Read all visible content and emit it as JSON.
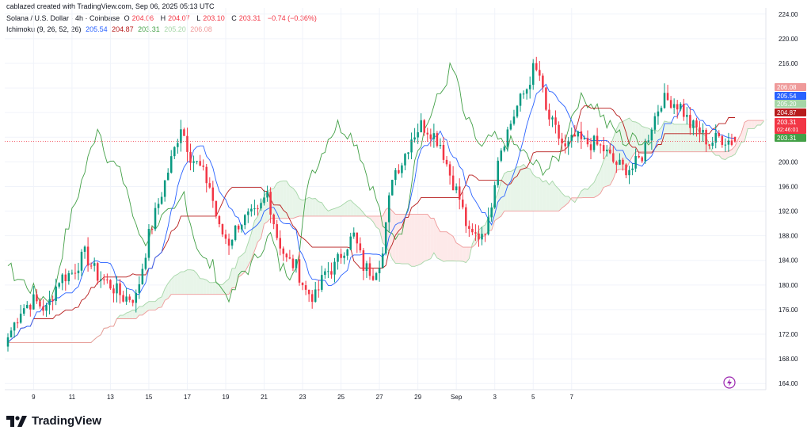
{
  "header": {
    "credit": "cablazed created with TradingView.com, Sep 06, 2025 05:13 UTC",
    "symbol": "Solana / U.S. Dollar · 4h · Coinbase",
    "ohlc": {
      "o_label": "O",
      "o": "204.06",
      "h_label": "H",
      "h": "204.07",
      "l_label": "L",
      "l": "203.10",
      "c_label": "C",
      "c": "203.31",
      "change": "−0.74 (−0.36%)"
    },
    "ichimoku": {
      "label": "Ichimoku (9, 26, 52, 26)",
      "conversion": "205.54",
      "base": "204.87",
      "lagging": "203.31",
      "lead_a": "205.20",
      "lead_b": "206.08"
    }
  },
  "footer": {
    "brand": "TradingView"
  },
  "colors": {
    "up": "#089981",
    "down": "#f23645",
    "conversion": "#2962ff",
    "base": "#b71c1c",
    "lagging": "#43a047",
    "lead_a": "#a5d6a7",
    "lead_b": "#ef9a9a",
    "cloud_bull": "#e8f5e9",
    "cloud_bear": "#fde9e9"
  },
  "chart_data": {
    "type": "candlestick",
    "indicator": "Ichimoku (9, 26, 52, 26)",
    "ylim": [
      163,
      225
    ],
    "y_ticks": [
      164,
      168,
      172,
      176,
      180,
      184,
      188,
      192,
      196,
      200,
      204,
      208,
      212,
      216,
      220,
      224
    ],
    "x_ticks": [
      "9",
      "11",
      "13",
      "15",
      "17",
      "19",
      "21",
      "23",
      "25",
      "27",
      "29",
      "Sep",
      "3",
      "5",
      "7"
    ],
    "price_labels": [
      {
        "value": 206.08,
        "text": "206.08",
        "color": "#ef9a9a"
      },
      {
        "value": 205.54,
        "text": "205.54",
        "color": "#2962ff"
      },
      {
        "value": 205.2,
        "text": "205.20",
        "color": "#a5d6a7"
      },
      {
        "value": 204.87,
        "text": "204.87",
        "color": "#b71c1c"
      },
      {
        "value": 203.31,
        "text": "203.31",
        "sub": "02:46:01",
        "color": "#f23645"
      },
      {
        "value": 203.31,
        "text": "203.31",
        "color": "#43a047"
      }
    ],
    "last_price": 203.31,
    "close_anchors": [
      [
        0,
        171.5
      ],
      [
        4,
        176.0
      ],
      [
        8,
        177.5
      ],
      [
        12,
        176.0
      ],
      [
        16,
        181.0
      ],
      [
        20,
        182.0
      ],
      [
        24,
        185.0
      ],
      [
        28,
        181.5
      ],
      [
        32,
        180.0
      ],
      [
        36,
        178.0
      ],
      [
        40,
        178.0
      ],
      [
        44,
        188.0
      ],
      [
        48,
        195.0
      ],
      [
        52,
        202.0
      ],
      [
        54,
        206.0
      ],
      [
        57,
        201.0
      ],
      [
        60,
        199.0
      ],
      [
        63,
        196.0
      ],
      [
        66,
        189.0
      ],
      [
        69,
        187.0
      ],
      [
        72,
        190.0
      ],
      [
        75,
        191.0
      ],
      [
        78,
        191.5
      ],
      [
        81,
        195.0
      ],
      [
        84,
        188.0
      ],
      [
        87,
        184.0
      ],
      [
        90,
        183.0
      ],
      [
        93,
        179.0
      ],
      [
        96,
        178.0
      ],
      [
        99,
        182.0
      ],
      [
        102,
        183.0
      ],
      [
        105,
        186.0
      ],
      [
        108,
        188.0
      ],
      [
        111,
        183.0
      ],
      [
        114,
        182.0
      ],
      [
        117,
        185.0
      ],
      [
        120,
        198.0
      ],
      [
        123,
        200.0
      ],
      [
        126,
        204.0
      ],
      [
        129,
        206.0
      ],
      [
        132,
        205.0
      ],
      [
        135,
        203.0
      ],
      [
        138,
        198.0
      ],
      [
        141,
        194.0
      ],
      [
        144,
        188.0
      ],
      [
        147,
        188.0
      ],
      [
        150,
        190.0
      ],
      [
        153,
        201.0
      ],
      [
        156,
        205.0
      ],
      [
        159,
        209.0
      ],
      [
        162,
        212.0
      ],
      [
        164,
        215.0
      ],
      [
        166,
        214.0
      ],
      [
        168,
        208.0
      ],
      [
        171,
        205.0
      ],
      [
        174,
        202.0
      ],
      [
        177,
        204.0
      ],
      [
        180,
        203.0
      ],
      [
        183,
        203.0
      ],
      [
        186,
        202.0
      ],
      [
        189,
        200.0
      ],
      [
        192,
        199.0
      ],
      [
        195,
        199.0
      ],
      [
        198,
        201.0
      ],
      [
        201,
        206.0
      ],
      [
        204,
        210.0
      ],
      [
        207,
        210.0
      ],
      [
        210,
        209.0
      ],
      [
        213,
        206.0
      ],
      [
        216,
        205.0
      ],
      [
        219,
        203.0
      ],
      [
        222,
        204.0
      ],
      [
        225,
        203.5
      ],
      [
        227,
        203.31
      ]
    ]
  }
}
